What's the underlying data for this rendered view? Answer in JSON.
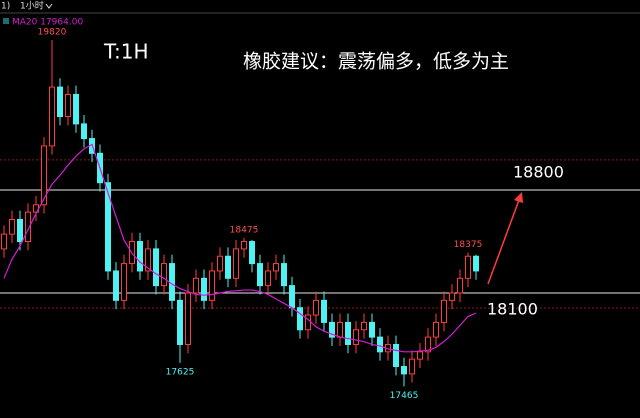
{
  "chart_data": {
    "type": "candlestick",
    "title": "T:1H",
    "annotation": "橡胶建议：震荡偏多，低多为主",
    "header": {
      "prefix": "1)",
      "period": "1小时"
    },
    "ma_legend": "MA20 17964.00",
    "up_color": "#ff3c3c",
    "down_color": "#4ef2f2",
    "open": [
      18400,
      18500,
      18600,
      18450,
      18650,
      18700,
      19100,
      19500,
      19300,
      19450,
      19250,
      19150,
      19050,
      18850,
      18250,
      18050,
      18300,
      18450,
      18250,
      18400,
      18150,
      18300,
      18050,
      17750,
      18100,
      18200,
      18050,
      18250,
      18350,
      18200,
      18400,
      18450,
      18300,
      18150,
      18250,
      18300,
      18150,
      18000,
      17850,
      17950,
      18050,
      17900,
      17800,
      17900,
      17750,
      17850,
      17900,
      17800,
      17700,
      17750,
      17600,
      17550,
      17650,
      17700,
      17800,
      17900,
      18050,
      18100,
      18200,
      18350
    ],
    "high": [
      18560,
      18660,
      18660,
      18710,
      18760,
      19160,
      19820,
      19560,
      19510,
      19510,
      19310,
      19210,
      19110,
      18910,
      18310,
      18360,
      18510,
      18510,
      18460,
      18460,
      18360,
      18360,
      18110,
      18160,
      18260,
      18260,
      18310,
      18410,
      18410,
      18460,
      18475,
      18460,
      18360,
      18310,
      18360,
      18360,
      18210,
      18060,
      18010,
      18110,
      18110,
      17960,
      17960,
      17960,
      17910,
      17960,
      17960,
      17860,
      17810,
      17810,
      17660,
      17710,
      17760,
      17860,
      17960,
      18110,
      18160,
      18260,
      18375,
      18360
    ],
    "low": [
      18340,
      18440,
      18390,
      18390,
      18590,
      18640,
      19040,
      19240,
      19240,
      19190,
      19090,
      18990,
      18790,
      18190,
      17990,
      17990,
      18240,
      18190,
      18190,
      18090,
      18090,
      17990,
      17625,
      17690,
      18040,
      17990,
      17990,
      18190,
      18140,
      18140,
      18340,
      18240,
      18090,
      18090,
      18190,
      18090,
      17940,
      17790,
      17790,
      17890,
      17840,
      17740,
      17740,
      17690,
      17690,
      17790,
      17740,
      17640,
      17640,
      17540,
      17465,
      17490,
      17590,
      17640,
      17740,
      17840,
      17990,
      18040,
      18140,
      18190
    ],
    "close": [
      18500,
      18600,
      18450,
      18650,
      18700,
      19100,
      19500,
      19300,
      19450,
      19250,
      19150,
      19050,
      18850,
      18250,
      18050,
      18300,
      18450,
      18250,
      18400,
      18150,
      18300,
      18050,
      17750,
      18100,
      18200,
      18050,
      18250,
      18350,
      18200,
      18400,
      18450,
      18300,
      18150,
      18250,
      18300,
      18150,
      18000,
      17850,
      17950,
      18050,
      17900,
      17800,
      17900,
      17750,
      17850,
      17900,
      17800,
      17700,
      17750,
      17600,
      17550,
      17650,
      17700,
      17800,
      17900,
      18050,
      18100,
      18200,
      18350,
      18250
    ],
    "ma": {
      "name": "MA20",
      "color": "#d21ed2",
      "values": [
        18200,
        18330,
        18420,
        18530,
        18640,
        18740,
        18840,
        18900,
        18970,
        19030,
        19080,
        19110,
        18950,
        18780,
        18620,
        18460,
        18370,
        18310,
        18270,
        18230,
        18200,
        18160,
        18130,
        18110,
        18090,
        18085,
        18090,
        18100,
        18110,
        18115,
        18120,
        18120,
        18110,
        18090,
        18060,
        18030,
        18000,
        17960,
        17920,
        17870,
        17840,
        17820,
        17800,
        17790,
        17780,
        17770,
        17750,
        17740,
        17720,
        17710,
        17700,
        17700,
        17705,
        17710,
        17730,
        17770,
        17820,
        17880,
        17940,
        17964
      ]
    },
    "levels": [
      18800,
      18100
    ],
    "dashed_levels": [
      19005,
      17997
    ],
    "ylim": [
      17250,
      19970
    ]
  }
}
